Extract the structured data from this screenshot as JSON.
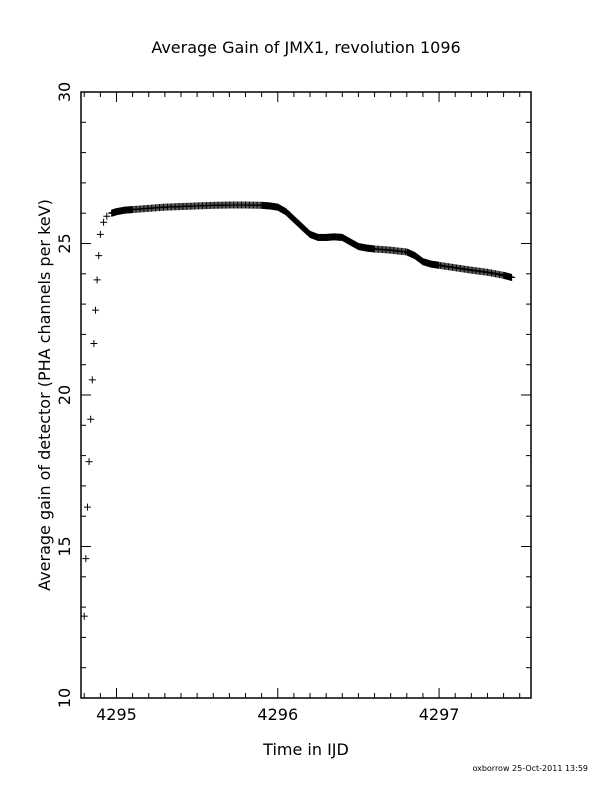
{
  "chart_data": {
    "type": "scatter",
    "title": "Average Gain of JMX1, revolution 1096",
    "xlabel": "Time in IJD",
    "ylabel": "Average gain of detector (PHA channels per keV)",
    "xlim": [
      4294.78,
      4297.57
    ],
    "ylim": [
      10,
      30
    ],
    "xticks": [
      4295,
      4296,
      4297
    ],
    "yticks": [
      10,
      15,
      20,
      25,
      30
    ],
    "marker": "plus",
    "grid": false,
    "x": [
      4294.8,
      4294.81,
      4294.82,
      4294.83,
      4294.84,
      4294.85,
      4294.86,
      4294.87,
      4294.88,
      4294.89,
      4294.9,
      4294.92,
      4294.94,
      4294.97,
      4295.0,
      4295.05,
      4295.1,
      4295.2,
      4295.3,
      4295.4,
      4295.5,
      4295.6,
      4295.7,
      4295.8,
      4295.9,
      4295.95,
      4296.0,
      4296.05,
      4296.1,
      4296.15,
      4296.2,
      4296.25,
      4296.3,
      4296.35,
      4296.4,
      4296.45,
      4296.5,
      4296.55,
      4296.6,
      4296.7,
      4296.8,
      4296.85,
      4296.9,
      4296.95,
      4297.0,
      4297.1,
      4297.2,
      4297.3,
      4297.4,
      4297.45
    ],
    "y": [
      12.7,
      14.6,
      16.3,
      17.8,
      19.2,
      20.5,
      21.7,
      22.8,
      23.8,
      24.6,
      25.3,
      25.7,
      25.9,
      26.0,
      26.05,
      26.1,
      26.12,
      26.16,
      26.2,
      26.22,
      26.24,
      26.26,
      26.27,
      26.27,
      26.26,
      26.24,
      26.2,
      26.05,
      25.8,
      25.55,
      25.3,
      25.2,
      25.2,
      25.22,
      25.2,
      25.05,
      24.9,
      24.85,
      24.82,
      24.78,
      24.72,
      24.6,
      24.4,
      24.32,
      24.28,
      24.2,
      24.12,
      24.05,
      23.95,
      23.88
    ]
  },
  "footer": {
    "stamp": "oxborrow 25-Oct-2011 13:59"
  }
}
